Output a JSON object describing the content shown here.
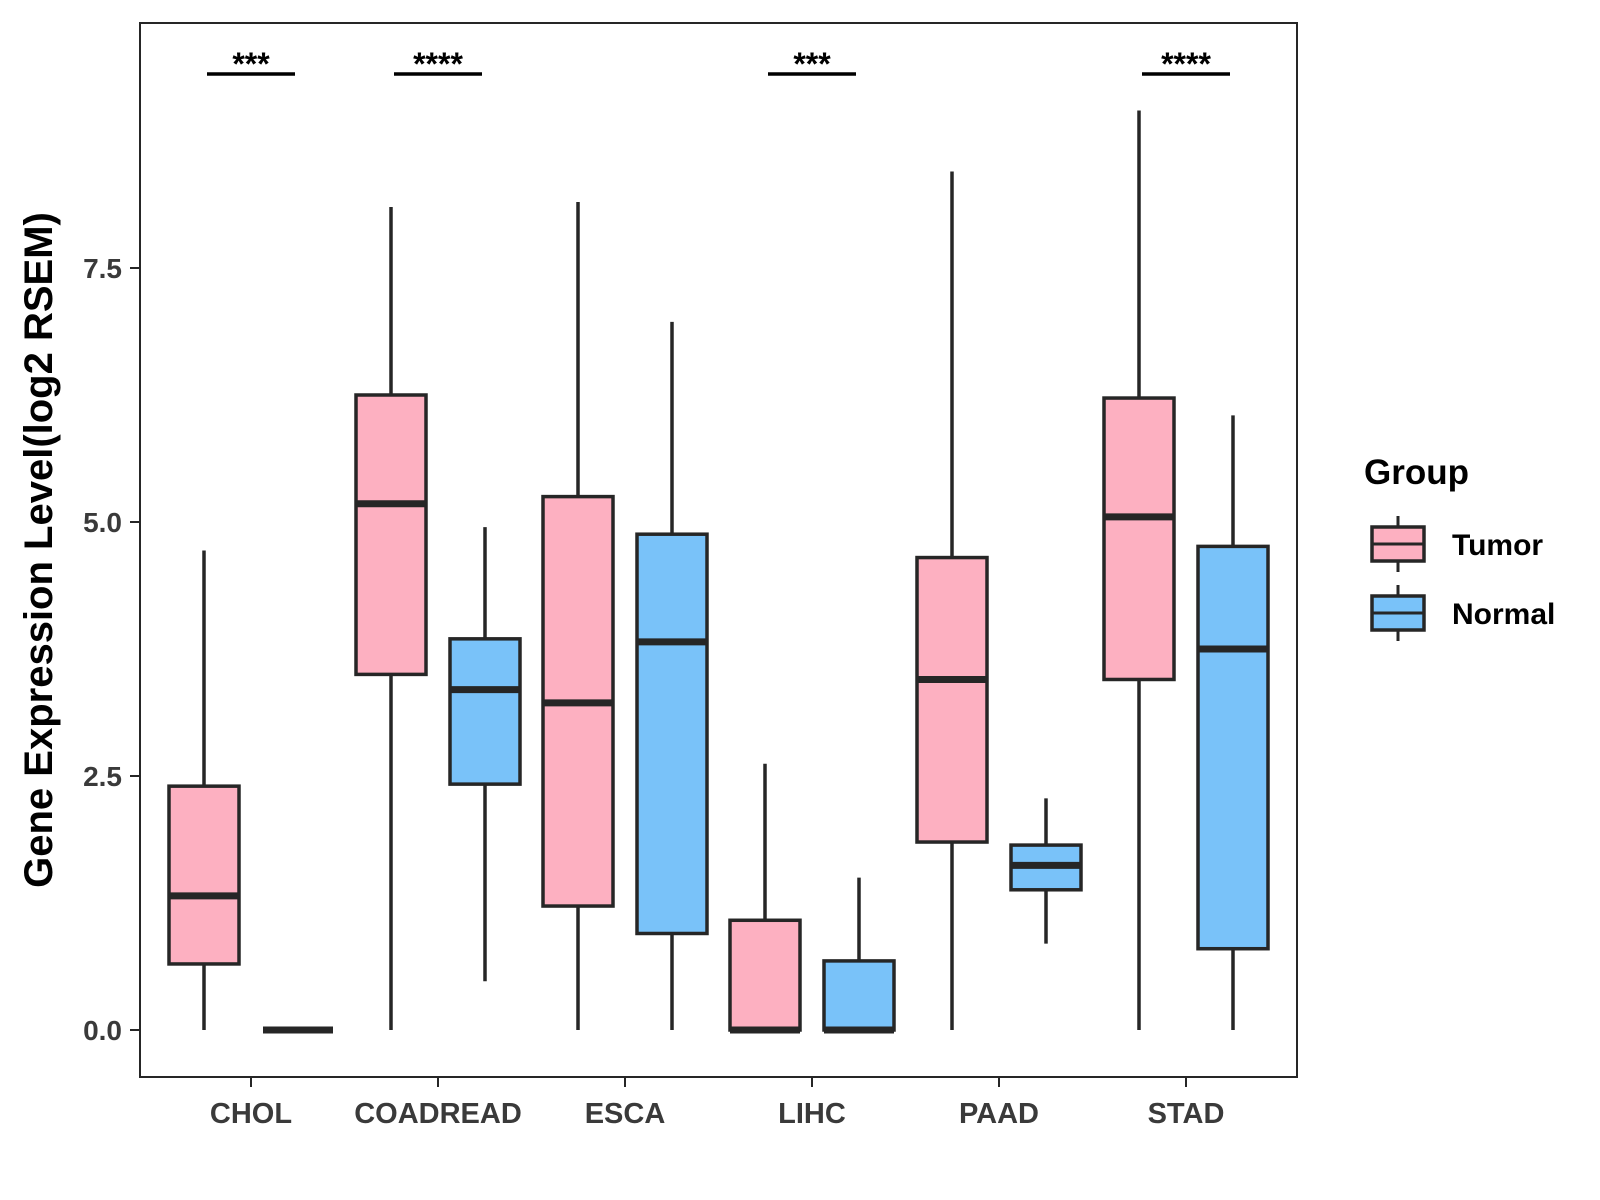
{
  "chart_data": {
    "type": "boxplot",
    "title": "",
    "xlabel": "",
    "ylabel": "Gene Expression Level(log2 RSEM)",
    "ylim": [
      -0.45,
      9.95
    ],
    "yticks": [
      0.0,
      2.5,
      5.0,
      7.5
    ],
    "ytick_labels": [
      "0.0",
      "2.5",
      "5.0",
      "7.5"
    ],
    "categories": [
      "CHOL",
      "COADREAD",
      "ESCA",
      "LIHC",
      "PAAD",
      "STAD"
    ],
    "legend": {
      "title": "Group",
      "position": "right",
      "entries": [
        "Tumor",
        "Normal"
      ]
    },
    "colors": {
      "Tumor": "#FDB0C1",
      "Normal": "#79C2F9",
      "outline": "#262626"
    },
    "series": [
      {
        "name": "Tumor",
        "boxes": [
          {
            "category": "CHOL",
            "min": 0.0,
            "q1": 0.65,
            "median": 1.32,
            "q3": 2.4,
            "max": 4.72
          },
          {
            "category": "COADREAD",
            "min": 0.0,
            "q1": 3.5,
            "median": 5.18,
            "q3": 6.25,
            "max": 8.1
          },
          {
            "category": "ESCA",
            "min": 0.0,
            "q1": 1.22,
            "median": 3.22,
            "q3": 5.25,
            "max": 8.15
          },
          {
            "category": "LIHC",
            "min": 0.0,
            "q1": 0.0,
            "median": 0.0,
            "q3": 1.08,
            "max": 2.62
          },
          {
            "category": "PAAD",
            "min": 0.0,
            "q1": 1.85,
            "median": 3.45,
            "q3": 4.65,
            "max": 8.45
          },
          {
            "category": "STAD",
            "min": 0.0,
            "q1": 3.45,
            "median": 5.05,
            "q3": 6.22,
            "max": 9.05
          }
        ]
      },
      {
        "name": "Normal",
        "boxes": [
          {
            "category": "CHOL",
            "min": 0.0,
            "q1": 0.0,
            "median": 0.0,
            "q3": 0.0,
            "max": 0.0
          },
          {
            "category": "COADREAD",
            "min": 0.48,
            "q1": 2.42,
            "median": 3.35,
            "q3": 3.85,
            "max": 4.95
          },
          {
            "category": "ESCA",
            "min": 0.0,
            "q1": 0.95,
            "median": 3.82,
            "q3": 4.88,
            "max": 6.97
          },
          {
            "category": "LIHC",
            "min": 0.0,
            "q1": 0.0,
            "median": 0.0,
            "q3": 0.68,
            "max": 1.5
          },
          {
            "category": "PAAD",
            "min": 0.85,
            "q1": 1.38,
            "median": 1.62,
            "q3": 1.82,
            "max": 2.28
          },
          {
            "category": "STAD",
            "min": 0.0,
            "q1": 0.8,
            "median": 3.75,
            "q3": 4.76,
            "max": 6.05
          }
        ]
      }
    ],
    "annotations": [
      {
        "category": "CHOL",
        "text": "***"
      },
      {
        "category": "COADREAD",
        "text": "****"
      },
      {
        "category": "LIHC",
        "text": "***"
      },
      {
        "category": "STAD",
        "text": "****"
      }
    ]
  }
}
